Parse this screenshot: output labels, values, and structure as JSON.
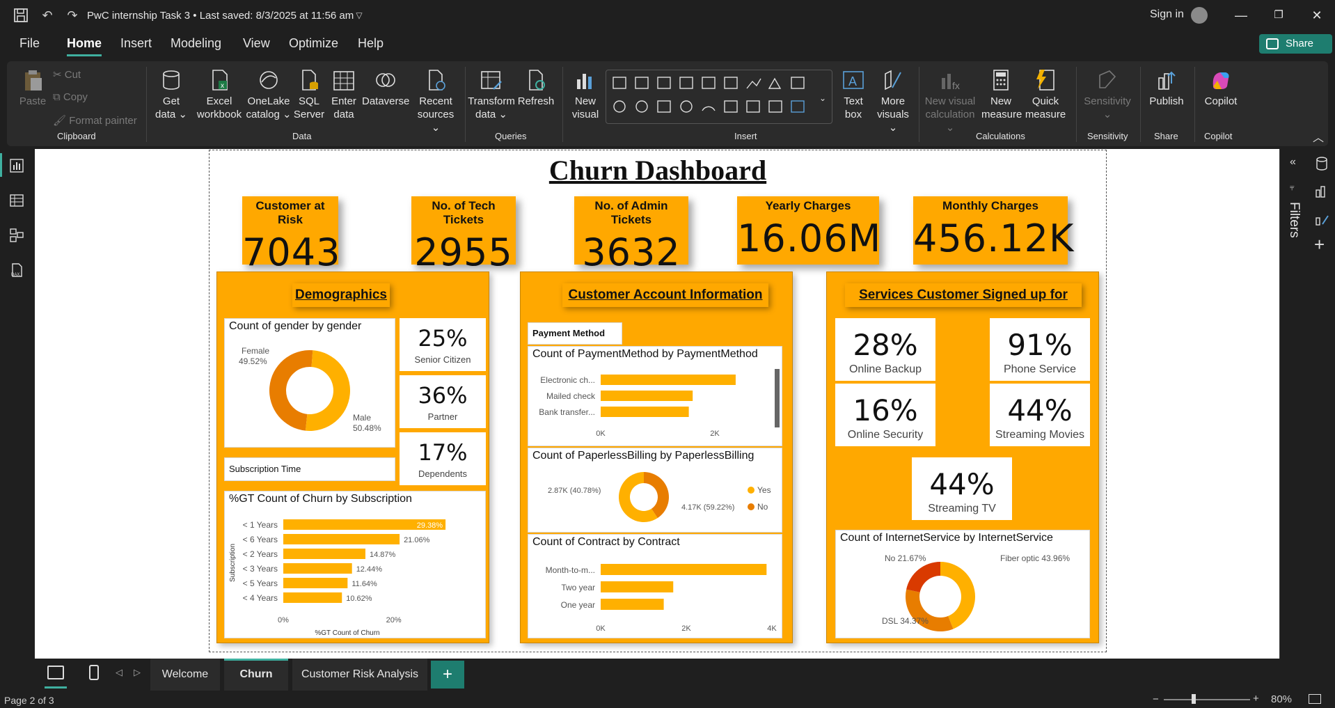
{
  "window": {
    "title": "PwC internship Task 3  •  Last saved: 8/3/2025 at 11:56 am",
    "sign_in": "Sign in"
  },
  "menu": {
    "items": [
      "File",
      "Home",
      "Insert",
      "Modeling",
      "View",
      "Optimize",
      "Help"
    ],
    "active": "Home",
    "share": "Share"
  },
  "ribbon": {
    "clipboard": {
      "paste": "Paste",
      "cut": "Cut",
      "copy": "Copy",
      "format_painter": "Format painter",
      "label": "Clipboard"
    },
    "data": {
      "get_data": "Get data ⌄",
      "excel": "Excel workbook",
      "onelake": "OneLake catalog ⌄",
      "sql": "SQL Server",
      "enter": "Enter data",
      "dataverse": "Dataverse",
      "recent": "Recent sources ⌄",
      "label": "Data"
    },
    "queries": {
      "transform": "Transform data ⌄",
      "refresh": "Refresh",
      "label": "Queries"
    },
    "insert": {
      "new_visual": "New visual",
      "text_box": "Text box",
      "more_visuals": "More visuals ⌄",
      "label": "Insert"
    },
    "calculations": {
      "new_visual_calc": "New visual calculation ⌄",
      "new_measure": "New measure",
      "quick_measure": "Quick measure",
      "label": "Calculations"
    },
    "sensitivity": {
      "button": "Sensitivity ⌄",
      "label": "Sensitivity"
    },
    "share": {
      "publish": "Publish",
      "label": "Share"
    },
    "copilot": {
      "button": "Copilot",
      "label": "Copilot"
    }
  },
  "dashboard": {
    "title": "Churn Dashboard",
    "kpis": [
      {
        "label": "Customer at Risk",
        "value": "7043"
      },
      {
        "label": "No. of Tech Tickets",
        "value": "2955"
      },
      {
        "label": "No. of Admin Tickets",
        "value": "3632"
      },
      {
        "label": "Yearly Charges",
        "value": "16.06M"
      },
      {
        "label": "Monthly Charges",
        "value": "456.12K"
      }
    ],
    "demographics": {
      "title": "Demographics",
      "gender_title": "Count of gender by gender",
      "female_label": "Female",
      "female_pct": "49.52%",
      "male_label": "Male",
      "male_pct": "50.48%",
      "senior_value": "25%",
      "senior_label": "Senior Citizen",
      "partner_value": "36%",
      "partner_label": "Partner",
      "dependents_value": "17%",
      "dependents_label": "Dependents",
      "subscription_slicer": "Subscription Time",
      "churn_title": "%GT Count of Churn by Subscription",
      "churn_axis_y": "Subscription",
      "churn_axis_x": "%GT Count of Churn"
    },
    "account": {
      "title": "Customer Account Information",
      "payment_slicer": "Payment Method",
      "payment_title": "Count of PaymentMethod by PaymentMethod",
      "paperless_title": "Count of PaperlessBilling by PaperlessBilling",
      "paperless_no_label": "2.87K (40.78%)",
      "paperless_yes_label": "4.17K (59.22%)",
      "legend_yes": "Yes",
      "legend_no": "No",
      "contract_title": "Count of Contract by Contract"
    },
    "services": {
      "title": "Services Customer Signed up for",
      "cards": [
        {
          "value": "28%",
          "label": "Online Backup"
        },
        {
          "value": "91%",
          "label": "Phone Service"
        },
        {
          "value": "16%",
          "label": "Online Security"
        },
        {
          "value": "44%",
          "label": "Streaming Movies"
        },
        {
          "value": "44%",
          "label": "Streaming TV"
        }
      ],
      "internet_title": "Count of InternetService by InternetService",
      "internet_no": "No 21.67%",
      "internet_fiber": "Fiber optic 43.96%",
      "internet_dsl": "DSL 34.37%"
    }
  },
  "chart_data": [
    {
      "type": "pie",
      "title": "Count of gender by gender",
      "categories": [
        "Female",
        "Male"
      ],
      "values": [
        49.52,
        50.48
      ],
      "colors": [
        "#e87d00",
        "#ffb000"
      ]
    },
    {
      "type": "bar",
      "title": "%GT Count of Churn by Subscription",
      "categories": [
        "< 1 Years",
        "< 6 Years",
        "< 2 Years",
        "< 3 Years",
        "< 5 Years",
        "< 4 Years"
      ],
      "values": [
        29.38,
        21.06,
        14.87,
        12.44,
        11.64,
        10.62
      ],
      "value_labels": [
        "29.38%",
        "21.06%",
        "14.87%",
        "12.44%",
        "11.64%",
        "10.62%"
      ],
      "xlabel": "%GT Count of Churn",
      "ylabel": "Subscription",
      "xticks": [
        "0%",
        "20%"
      ],
      "xlim": [
        0,
        30
      ]
    },
    {
      "type": "bar",
      "title": "Count of PaymentMethod by PaymentMethod",
      "categories": [
        "Electronic ch...",
        "Mailed check",
        "Bank transfer..."
      ],
      "values": [
        2365,
        1612,
        1544
      ],
      "xticks": [
        "0K",
        "2K"
      ],
      "xlim": [
        0,
        3000
      ]
    },
    {
      "type": "pie",
      "title": "Count of PaperlessBilling by PaperlessBilling",
      "categories": [
        "Yes",
        "No"
      ],
      "values": [
        4170,
        2870
      ],
      "colors": [
        "#ffb000",
        "#e87d00"
      ]
    },
    {
      "type": "bar",
      "title": "Count of Contract by Contract",
      "categories": [
        "Month-to-m...",
        "Two year",
        "One year"
      ],
      "values": [
        3875,
        1695,
        1473
      ],
      "xticks": [
        "0K",
        "2K",
        "4K"
      ],
      "xlim": [
        0,
        4000
      ]
    },
    {
      "type": "pie",
      "title": "Count of InternetService by InternetService",
      "categories": [
        "Fiber optic",
        "DSL",
        "No"
      ],
      "values": [
        43.96,
        34.37,
        21.67
      ],
      "colors": [
        "#ffb000",
        "#e87d00",
        "#d93a00"
      ]
    }
  ],
  "pages": {
    "tabs": [
      "Welcome",
      "Churn",
      "Customer Risk Analysis"
    ],
    "active": "Churn",
    "indicator": "Page 2 of 3",
    "zoom": "80%"
  }
}
